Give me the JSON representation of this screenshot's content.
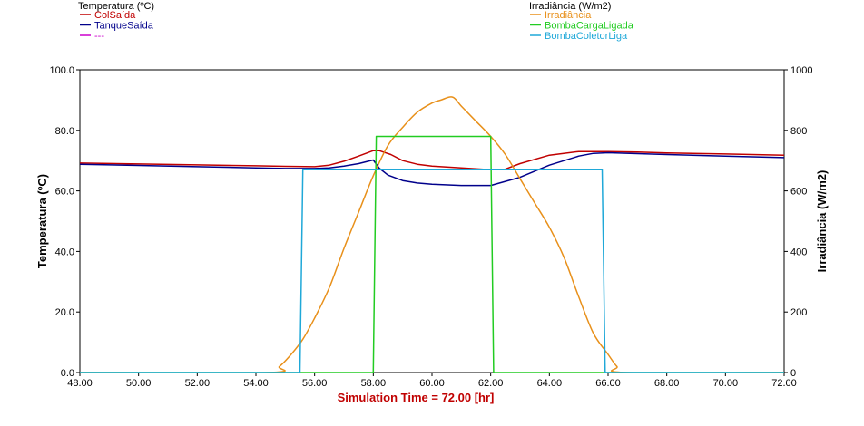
{
  "chart_data": {
    "type": "line",
    "left_legend": {
      "title": "Temperatura (ºC)",
      "entries": [
        {
          "name": "ColSaída",
          "color": "#c00000"
        },
        {
          "name": "TanqueSaída",
          "color": "#00008b"
        },
        {
          "name": "---",
          "color": "#cc00cc"
        }
      ]
    },
    "right_legend": {
      "title": "Irradiância (W/m2)",
      "entries": [
        {
          "name": "Irradiância",
          "color": "#e8901a"
        },
        {
          "name": "BombaCargaLigada",
          "color": "#22cc22"
        },
        {
          "name": "BombaColetorLiga",
          "color": "#1fa8d8"
        }
      ]
    },
    "xlabel_prefix": "Simulation Time = ",
    "xlabel_value": "72.00 [hr]",
    "xlabel_color": "#c00000",
    "ylabel_left": "Temperatura (ºC)",
    "ylabel_right": "Irradiância (W/m2)",
    "xlim": [
      48,
      72
    ],
    "ylim_left": [
      0,
      100
    ],
    "ylim_right": [
      0,
      1000
    ],
    "x_ticks": [
      "48.00",
      "50.00",
      "52.00",
      "54.00",
      "56.00",
      "58.00",
      "60.00",
      "62.00",
      "64.00",
      "66.00",
      "68.00",
      "70.00",
      "72.00"
    ],
    "y_left_ticks": [
      "0.0",
      "20.0",
      "40.0",
      "60.0",
      "80.0",
      "100.0"
    ],
    "y_right_ticks": [
      "0",
      "200",
      "400",
      "600",
      "800",
      "1000"
    ],
    "series": [
      {
        "name": "ColSaída",
        "axis": "left",
        "color": "#c00000",
        "x": [
          48,
          50,
          52,
          54,
          55,
          56,
          56.5,
          57,
          57.5,
          58,
          58.2,
          58.6,
          59,
          59.5,
          60,
          61,
          62,
          62.5,
          63,
          64,
          65,
          66,
          67,
          68,
          70,
          72
        ],
        "y": [
          69.2,
          68.9,
          68.6,
          68.3,
          68.1,
          68.0,
          68.5,
          69.8,
          71.5,
          73.3,
          73.3,
          72.0,
          70.0,
          68.8,
          68.2,
          67.6,
          67.0,
          67.2,
          69.0,
          71.8,
          73.0,
          73.0,
          72.8,
          72.5,
          72.2,
          71.8
        ]
      },
      {
        "name": "TanqueSaída",
        "axis": "left",
        "color": "#00008b",
        "x": [
          48,
          50,
          52,
          54,
          55,
          56,
          56.5,
          57,
          57.5,
          58,
          58.2,
          58.5,
          59,
          59.5,
          60,
          61,
          62,
          63,
          64,
          65,
          65.5,
          66,
          67,
          68,
          70,
          72
        ],
        "y": [
          68.8,
          68.4,
          68.0,
          67.6,
          67.4,
          67.4,
          67.6,
          68.2,
          69.0,
          70.2,
          67.5,
          65.2,
          63.4,
          62.6,
          62.2,
          61.8,
          61.8,
          64.5,
          68.5,
          71.5,
          72.4,
          72.6,
          72.3,
          72.0,
          71.5,
          71.0
        ]
      },
      {
        "name": "Irradiância",
        "axis": "right",
        "color": "#e8901a",
        "x": [
          48,
          54.4,
          54.8,
          55.2,
          55.6,
          56,
          56.5,
          57,
          57.5,
          58,
          58.5,
          59,
          59.5,
          60,
          60.3,
          60.7,
          61,
          61.5,
          62,
          62.5,
          63,
          63.5,
          64,
          64.5,
          65,
          65.5,
          66,
          66.3,
          66.6,
          72
        ],
        "y": [
          0,
          0,
          20,
          60,
          110,
          180,
          280,
          410,
          530,
          650,
          750,
          810,
          860,
          890,
          900,
          910,
          880,
          830,
          780,
          720,
          640,
          560,
          480,
          380,
          250,
          130,
          60,
          20,
          0,
          0
        ]
      },
      {
        "name": "BombaCargaLigada",
        "axis": "right",
        "color": "#22cc22",
        "x": [
          48,
          58.0,
          58.1,
          62.0,
          62.1,
          72
        ],
        "y": [
          0,
          0,
          780,
          780,
          0,
          0
        ]
      },
      {
        "name": "BombaColetorLiga",
        "axis": "right",
        "color": "#1fa8d8",
        "x": [
          48,
          55.5,
          55.6,
          65.8,
          65.9,
          72
        ],
        "y": [
          0,
          0,
          670,
          670,
          0,
          0
        ]
      }
    ]
  }
}
